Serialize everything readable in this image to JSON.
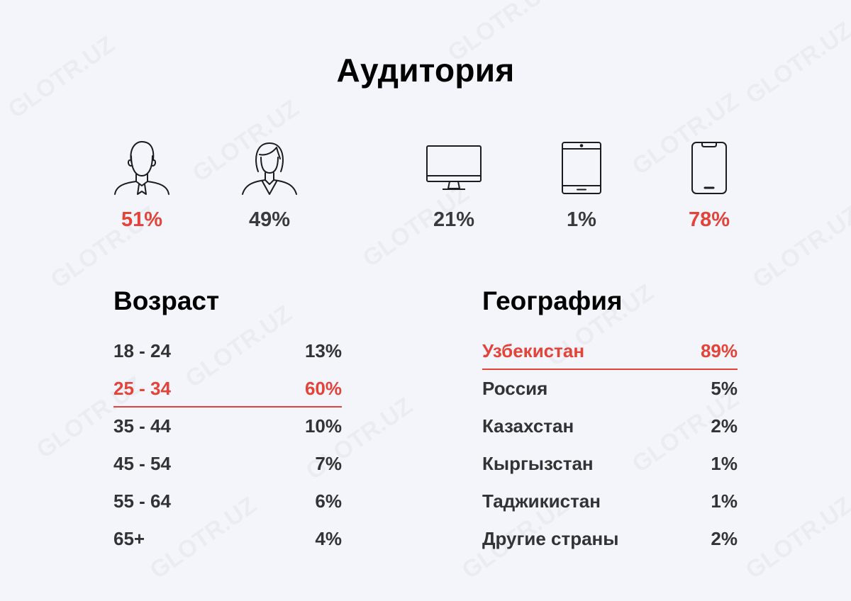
{
  "title": "Аудитория",
  "gender": [
    {
      "icon": "man-icon",
      "value": "51%",
      "highlight": true
    },
    {
      "icon": "woman-icon",
      "value": "49%",
      "highlight": false
    }
  ],
  "devices": [
    {
      "icon": "desktop-monitor-icon",
      "value": "21%",
      "highlight": false
    },
    {
      "icon": "tablet-icon",
      "value": "1%",
      "highlight": false
    },
    {
      "icon": "smartphone-icon",
      "value": "78%",
      "highlight": true
    }
  ],
  "age": {
    "title": "Возраст",
    "rows": [
      {
        "label": "18 - 24",
        "value": "13%",
        "highlight": false
      },
      {
        "label": "25 - 34",
        "value": "60%",
        "highlight": true
      },
      {
        "label": "35 - 44",
        "value": "10%",
        "highlight": false
      },
      {
        "label": "45 - 54",
        "value": "7%",
        "highlight": false
      },
      {
        "label": "55 - 64",
        "value": "6%",
        "highlight": false
      },
      {
        "label": "65+",
        "value": "4%",
        "highlight": false
      }
    ]
  },
  "geography": {
    "title": "География",
    "rows": [
      {
        "label": "Узбекистан",
        "value": "89%",
        "highlight": true
      },
      {
        "label": "Россия",
        "value": "5%",
        "highlight": false
      },
      {
        "label": "Казахстан",
        "value": "2%",
        "highlight": false
      },
      {
        "label": "Кыргызстан",
        "value": "1%",
        "highlight": false
      },
      {
        "label": "Таджикистан",
        "value": "1%",
        "highlight": false
      },
      {
        "label": "Другие страны",
        "value": "2%",
        "highlight": false
      }
    ]
  },
  "watermark": "GLOTR.UZ",
  "colors": {
    "accent": "#e4433a",
    "background": "#f4f5fa",
    "text": "#333336"
  }
}
